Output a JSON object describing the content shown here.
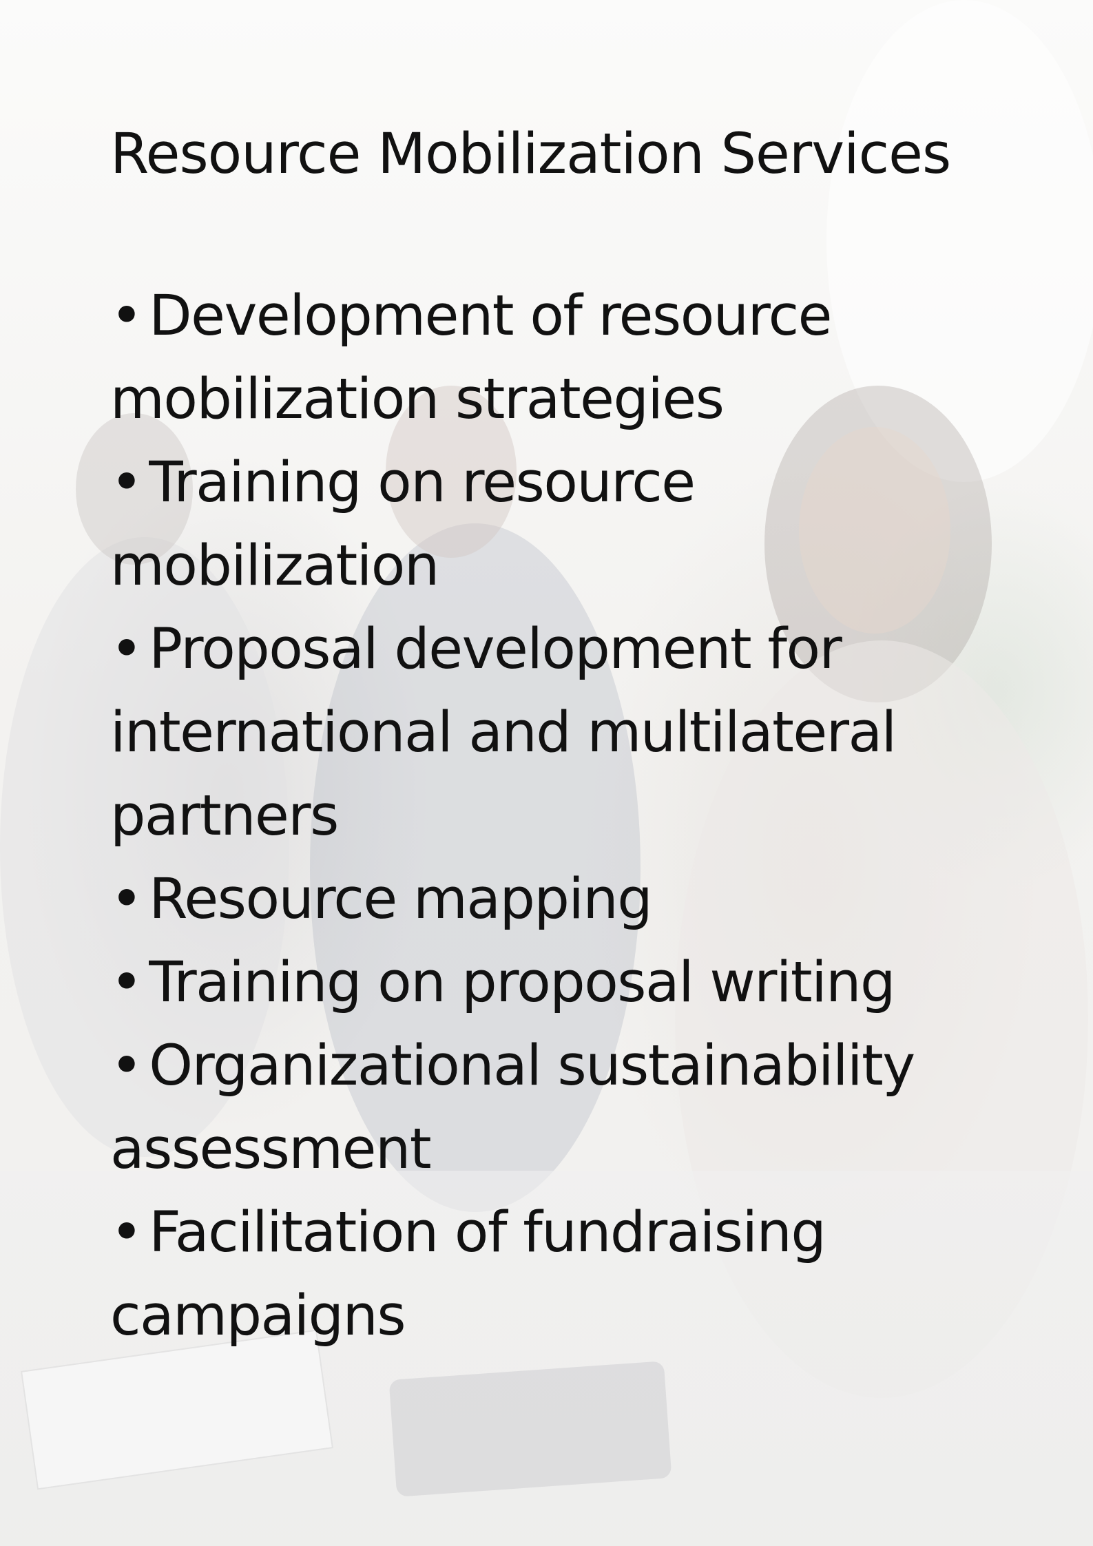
{
  "document": {
    "title": "Resource Mobilization Services",
    "bullet_symbol": "•",
    "services": [
      {
        "label": "Development of resource mobilization strategies"
      },
      {
        "label": "Training on resource mobilization"
      },
      {
        "label": "Proposal development for international and multilateral partners"
      },
      {
        "label": "Resource mapping"
      },
      {
        "label": "Training on proposal writing"
      },
      {
        "label": "Organizational sustainability assessment"
      },
      {
        "label": "Facilitation of fundraising campaigns"
      }
    ]
  },
  "colors": {
    "text": "#111111",
    "background": "#f7f6f4"
  }
}
